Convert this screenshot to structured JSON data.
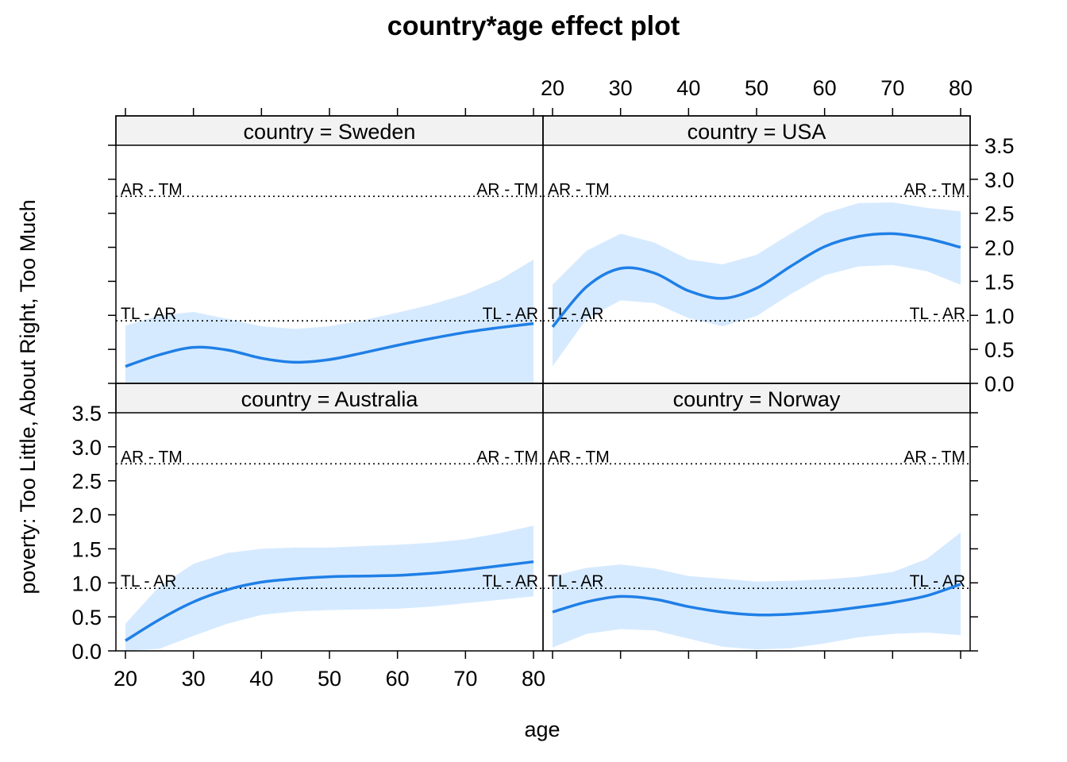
{
  "chart_data": {
    "type": "line",
    "title": "country*age effect plot",
    "xlabel": "age",
    "ylabel": "poverty: Too Little, About Right, Too Much",
    "xlim": [
      20,
      80
    ],
    "ylim": [
      0,
      3.5
    ],
    "x_ticks": [
      "20",
      "30",
      "40",
      "50",
      "60",
      "70",
      "80"
    ],
    "y_ticks": [
      "0.0",
      "0.5",
      "1.0",
      "1.5",
      "2.0",
      "2.5",
      "3.0",
      "3.5"
    ],
    "ref_lines": [
      {
        "label": "AR - TM",
        "y": 2.75
      },
      {
        "label": "TL - AR",
        "y": 0.92
      }
    ],
    "colors": {
      "line": "#1f7fe6",
      "band": "#d6eaff",
      "strip": "#f2f2f2"
    },
    "panels": [
      {
        "strip": "country = Sweden",
        "x": [
          20,
          25,
          30,
          35,
          40,
          45,
          50,
          55,
          60,
          65,
          70,
          75,
          80
        ],
        "y": [
          0.25,
          0.42,
          0.53,
          0.49,
          0.37,
          0.31,
          0.35,
          0.45,
          0.56,
          0.66,
          0.75,
          0.82,
          0.88
        ],
        "lower": [
          0.0,
          0.0,
          0.0,
          0.0,
          0.0,
          0.0,
          0.0,
          0.0,
          0.0,
          0.0,
          0.0,
          0.0,
          0.0
        ],
        "upper": [
          0.85,
          1.0,
          1.05,
          0.95,
          0.84,
          0.8,
          0.84,
          0.93,
          1.04,
          1.16,
          1.31,
          1.52,
          1.82
        ]
      },
      {
        "strip": "country = USA",
        "x": [
          20,
          25,
          30,
          35,
          40,
          45,
          50,
          55,
          60,
          65,
          70,
          75,
          80
        ],
        "y": [
          0.83,
          1.42,
          1.69,
          1.62,
          1.36,
          1.25,
          1.4,
          1.72,
          2.01,
          2.16,
          2.2,
          2.13,
          2.0
        ],
        "lower": [
          0.25,
          0.95,
          1.22,
          1.18,
          0.96,
          0.84,
          0.99,
          1.31,
          1.59,
          1.72,
          1.74,
          1.65,
          1.45
        ],
        "upper": [
          1.45,
          1.95,
          2.2,
          2.07,
          1.82,
          1.75,
          1.89,
          2.2,
          2.5,
          2.65,
          2.66,
          2.58,
          2.53
        ]
      },
      {
        "strip": "country = Australia",
        "x": [
          20,
          25,
          30,
          35,
          40,
          45,
          50,
          55,
          60,
          65,
          70,
          75,
          80
        ],
        "y": [
          0.15,
          0.46,
          0.72,
          0.9,
          1.01,
          1.06,
          1.09,
          1.1,
          1.11,
          1.14,
          1.19,
          1.25,
          1.31
        ],
        "lower": [
          0.0,
          0.03,
          0.22,
          0.4,
          0.53,
          0.58,
          0.6,
          0.61,
          0.62,
          0.65,
          0.7,
          0.75,
          0.8
        ],
        "upper": [
          0.4,
          0.95,
          1.28,
          1.44,
          1.5,
          1.52,
          1.52,
          1.54,
          1.56,
          1.59,
          1.64,
          1.73,
          1.84
        ]
      },
      {
        "strip": "country = Norway",
        "x": [
          20,
          25,
          30,
          35,
          40,
          45,
          50,
          55,
          60,
          65,
          70,
          75,
          80
        ],
        "y": [
          0.57,
          0.72,
          0.8,
          0.76,
          0.65,
          0.57,
          0.53,
          0.54,
          0.58,
          0.64,
          0.71,
          0.81,
          0.98
        ],
        "lower": [
          0.05,
          0.25,
          0.32,
          0.3,
          0.18,
          0.06,
          0.02,
          0.04,
          0.11,
          0.2,
          0.25,
          0.27,
          0.23
        ],
        "upper": [
          1.1,
          1.22,
          1.27,
          1.21,
          1.1,
          1.06,
          1.02,
          1.03,
          1.05,
          1.09,
          1.16,
          1.35,
          1.74
        ]
      }
    ]
  }
}
